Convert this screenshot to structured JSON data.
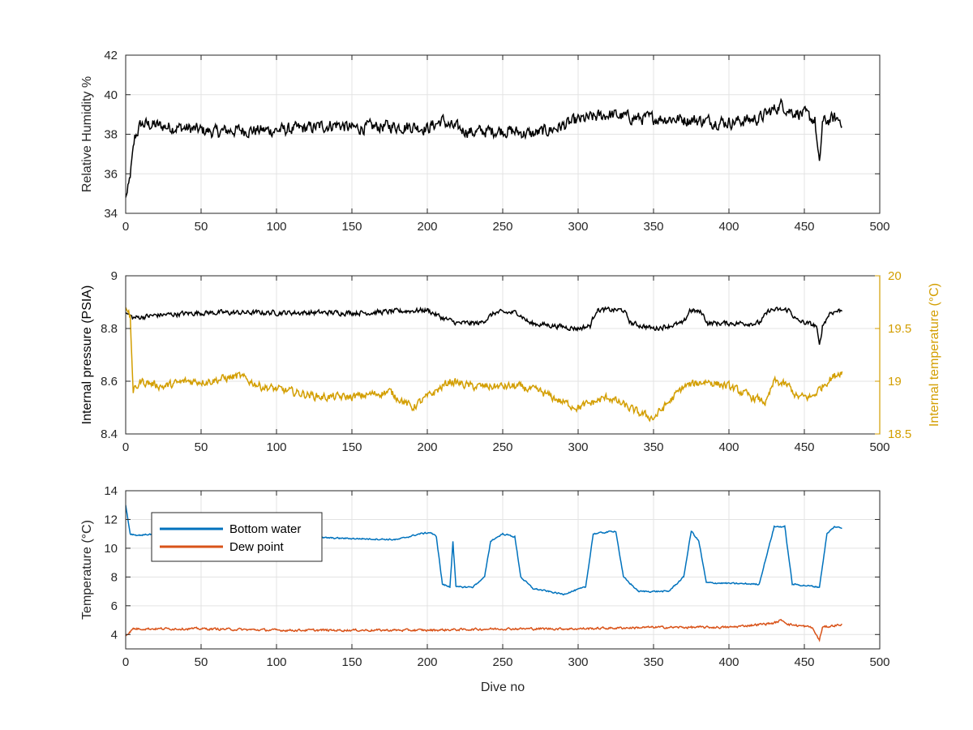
{
  "chart_data": [
    {
      "type": "line",
      "xlabel": "",
      "ylabel": "Relative Humidity %",
      "xlim": [
        0,
        500
      ],
      "ylim": [
        34,
        42
      ],
      "xticks": [
        "0",
        "50",
        "100",
        "150",
        "200",
        "250",
        "300",
        "350",
        "400",
        "450",
        "500"
      ],
      "yticks": [
        "34",
        "36",
        "38",
        "40",
        "42"
      ],
      "grid": true,
      "series": [
        {
          "color": "#000000",
          "noise": 0.5,
          "points": [
            [
              0,
              34.8
            ],
            [
              2,
              35.3
            ],
            [
              4,
              36.5
            ],
            [
              6,
              37.8
            ],
            [
              10,
              38.5
            ],
            [
              15,
              38.5
            ],
            [
              25,
              38.4
            ],
            [
              40,
              38.3
            ],
            [
              50,
              38.2
            ],
            [
              60,
              38.1
            ],
            [
              70,
              38.2
            ],
            [
              80,
              38.2
            ],
            [
              100,
              38.2
            ],
            [
              120,
              38.3
            ],
            [
              140,
              38.5
            ],
            [
              150,
              38.3
            ],
            [
              170,
              38.4
            ],
            [
              190,
              38.4
            ],
            [
              200,
              38.3
            ],
            [
              210,
              38.7
            ],
            [
              215,
              38.4
            ],
            [
              230,
              38.1
            ],
            [
              250,
              38.2
            ],
            [
              270,
              38.0
            ],
            [
              285,
              38.3
            ],
            [
              300,
              38.7
            ],
            [
              320,
              39.0
            ],
            [
              340,
              38.8
            ],
            [
              360,
              38.8
            ],
            [
              380,
              38.7
            ],
            [
              400,
              38.6
            ],
            [
              420,
              38.8
            ],
            [
              435,
              39.5
            ],
            [
              440,
              39.2
            ],
            [
              450,
              39.0
            ],
            [
              457,
              38.7
            ],
            [
              460,
              36.3
            ],
            [
              462,
              38.6
            ],
            [
              470,
              38.8
            ],
            [
              475,
              38.7
            ]
          ]
        }
      ]
    },
    {
      "type": "line",
      "xlabel": "",
      "ylabel": "Internal pressure (PSIA)",
      "y2label": "Internal temperature (°C)",
      "xlim": [
        0,
        500
      ],
      "ylim": [
        8.4,
        9
      ],
      "y2lim": [
        18.5,
        20
      ],
      "xticks": [
        "0",
        "50",
        "100",
        "150",
        "200",
        "250",
        "300",
        "350",
        "400",
        "450",
        "500"
      ],
      "yticks": [
        "8.4",
        "8.6",
        "8.8",
        "9"
      ],
      "y2ticks": [
        "18.5",
        "19",
        "19.5",
        "20"
      ],
      "grid": true,
      "series": [
        {
          "axis": "left",
          "color": "#000000",
          "noise": 0.015,
          "points": [
            [
              0,
              8.86
            ],
            [
              5,
              8.84
            ],
            [
              20,
              8.85
            ],
            [
              50,
              8.86
            ],
            [
              80,
              8.86
            ],
            [
              120,
              8.86
            ],
            [
              160,
              8.86
            ],
            [
              200,
              8.87
            ],
            [
              210,
              8.84
            ],
            [
              220,
              8.82
            ],
            [
              235,
              8.82
            ],
            [
              245,
              8.86
            ],
            [
              260,
              8.86
            ],
            [
              268,
              8.82
            ],
            [
              285,
              8.81
            ],
            [
              300,
              8.8
            ],
            [
              308,
              8.81
            ],
            [
              312,
              8.87
            ],
            [
              330,
              8.87
            ],
            [
              335,
              8.82
            ],
            [
              350,
              8.8
            ],
            [
              360,
              8.81
            ],
            [
              370,
              8.82
            ],
            [
              374,
              8.87
            ],
            [
              382,
              8.86
            ],
            [
              386,
              8.82
            ],
            [
              420,
              8.82
            ],
            [
              427,
              8.87
            ],
            [
              440,
              8.87
            ],
            [
              445,
              8.83
            ],
            [
              458,
              8.81
            ],
            [
              460,
              8.73
            ],
            [
              462,
              8.81
            ],
            [
              467,
              8.86
            ],
            [
              475,
              8.87
            ]
          ]
        },
        {
          "axis": "right",
          "color": "#d39e00",
          "noise": 0.06,
          "points": [
            [
              0,
              19.7
            ],
            [
              3,
              19.6
            ],
            [
              5,
              18.9
            ],
            [
              10,
              19.0
            ],
            [
              25,
              18.95
            ],
            [
              40,
              19.0
            ],
            [
              55,
              19.0
            ],
            [
              75,
              19.05
            ],
            [
              90,
              18.95
            ],
            [
              110,
              18.9
            ],
            [
              130,
              18.85
            ],
            [
              150,
              18.85
            ],
            [
              175,
              18.9
            ],
            [
              190,
              18.75
            ],
            [
              205,
              18.9
            ],
            [
              215,
              19.0
            ],
            [
              230,
              18.95
            ],
            [
              245,
              18.95
            ],
            [
              260,
              18.95
            ],
            [
              275,
              18.9
            ],
            [
              290,
              18.8
            ],
            [
              300,
              18.75
            ],
            [
              320,
              18.85
            ],
            [
              340,
              18.7
            ],
            [
              350,
              18.65
            ],
            [
              360,
              18.8
            ],
            [
              370,
              18.95
            ],
            [
              385,
              19.0
            ],
            [
              400,
              18.95
            ],
            [
              415,
              18.85
            ],
            [
              425,
              18.8
            ],
            [
              430,
              19.0
            ],
            [
              440,
              18.95
            ],
            [
              445,
              18.85
            ],
            [
              455,
              18.85
            ],
            [
              465,
              19.0
            ],
            [
              475,
              19.1
            ]
          ]
        }
      ]
    },
    {
      "type": "line",
      "xlabel": "Dive no",
      "ylabel": "Temperature (°C)",
      "xlim": [
        0,
        500
      ],
      "ylim": [
        3,
        14
      ],
      "xticks": [
        "0",
        "50",
        "100",
        "150",
        "200",
        "250",
        "300",
        "350",
        "400",
        "450",
        "500"
      ],
      "yticks": [
        "4",
        "6",
        "8",
        "10",
        "12",
        "14"
      ],
      "grid": true,
      "legend_position": "top-left",
      "series": [
        {
          "name": "Bottom water",
          "color": "#0072bd",
          "noise": 0.08,
          "points": [
            [
              0,
              13.0
            ],
            [
              3,
              11.0
            ],
            [
              8,
              10.9
            ],
            [
              20,
              11.0
            ],
            [
              40,
              10.9
            ],
            [
              60,
              10.9
            ],
            [
              100,
              10.8
            ],
            [
              140,
              10.7
            ],
            [
              180,
              10.6
            ],
            [
              195,
              11.0
            ],
            [
              202,
              11.1
            ],
            [
              206,
              10.8
            ],
            [
              210,
              7.5
            ],
            [
              215,
              7.3
            ],
            [
              217,
              10.5
            ],
            [
              219,
              7.3
            ],
            [
              230,
              7.3
            ],
            [
              238,
              8.0
            ],
            [
              242,
              10.5
            ],
            [
              250,
              11.0
            ],
            [
              258,
              10.8
            ],
            [
              262,
              8.0
            ],
            [
              270,
              7.2
            ],
            [
              290,
              6.8
            ],
            [
              305,
              7.3
            ],
            [
              310,
              11.0
            ],
            [
              325,
              11.2
            ],
            [
              330,
              8.0
            ],
            [
              340,
              7.0
            ],
            [
              360,
              7.0
            ],
            [
              370,
              8.0
            ],
            [
              375,
              11.2
            ],
            [
              380,
              10.5
            ],
            [
              385,
              7.6
            ],
            [
              420,
              7.5
            ],
            [
              430,
              11.5
            ],
            [
              437,
              11.5
            ],
            [
              442,
              7.5
            ],
            [
              460,
              7.3
            ],
            [
              465,
              11.0
            ],
            [
              470,
              11.5
            ],
            [
              475,
              11.4
            ]
          ]
        },
        {
          "name": "Dew point",
          "color": "#d95319",
          "noise": 0.12,
          "points": [
            [
              0,
              3.9
            ],
            [
              5,
              4.4
            ],
            [
              50,
              4.4
            ],
            [
              100,
              4.3
            ],
            [
              150,
              4.3
            ],
            [
              200,
              4.3
            ],
            [
              250,
              4.4
            ],
            [
              300,
              4.4
            ],
            [
              350,
              4.5
            ],
            [
              400,
              4.5
            ],
            [
              430,
              4.8
            ],
            [
              435,
              5.0
            ],
            [
              440,
              4.7
            ],
            [
              455,
              4.5
            ],
            [
              460,
              3.6
            ],
            [
              462,
              4.5
            ],
            [
              475,
              4.7
            ]
          ]
        }
      ]
    }
  ]
}
